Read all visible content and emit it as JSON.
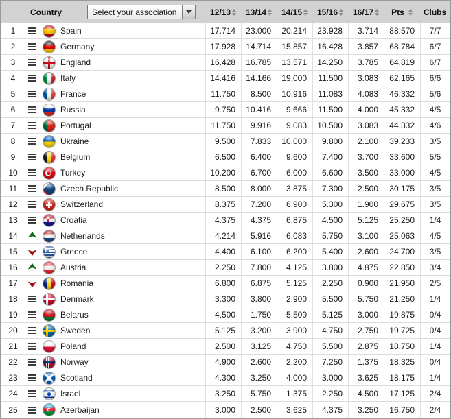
{
  "header": {
    "country_label": "Country",
    "dropdown": {
      "value": "Select your association"
    },
    "season_columns": [
      "12/13",
      "13/14",
      "14/15",
      "15/16",
      "16/17"
    ],
    "pts_label": "Pts",
    "clubs_label": "Clubs"
  },
  "icons": {
    "dropdown": "dropdown-arrow-icon",
    "sort": "sort-arrows-icon",
    "movement_equal": "equal-bars-icon",
    "movement_up": "up-arrow-icon",
    "movement_down": "down-arrow-icon",
    "flag": "flag-icon"
  },
  "colors": {
    "header_bg": "#d2d2d2",
    "outer_border": "#9a9a9a",
    "row_divider": "#dcdce0",
    "movement_up": "#156615",
    "movement_down": "#9e1115",
    "movement_equal": "#3d3d3d"
  },
  "table": {
    "rows": [
      {
        "rank": 1,
        "movement": "equal",
        "flag": "spain",
        "country": "Spain",
        "seasons": [
          "17.714",
          "23.000",
          "20.214",
          "23.928",
          "3.714"
        ],
        "pts": "88.570",
        "clubs": "7/7"
      },
      {
        "rank": 2,
        "movement": "equal",
        "flag": "germany",
        "country": "Germany",
        "seasons": [
          "17.928",
          "14.714",
          "15.857",
          "16.428",
          "3.857"
        ],
        "pts": "68.784",
        "clubs": "6/7"
      },
      {
        "rank": 3,
        "movement": "equal",
        "flag": "england",
        "country": "England",
        "seasons": [
          "16.428",
          "16.785",
          "13.571",
          "14.250",
          "3.785"
        ],
        "pts": "64.819",
        "clubs": "6/7"
      },
      {
        "rank": 4,
        "movement": "equal",
        "flag": "italy",
        "country": "Italy",
        "seasons": [
          "14.416",
          "14.166",
          "19.000",
          "11.500",
          "3.083"
        ],
        "pts": "62.165",
        "clubs": "6/6"
      },
      {
        "rank": 5,
        "movement": "equal",
        "flag": "france",
        "country": "France",
        "seasons": [
          "11.750",
          "8.500",
          "10.916",
          "11.083",
          "4.083"
        ],
        "pts": "46.332",
        "clubs": "5/6"
      },
      {
        "rank": 6,
        "movement": "equal",
        "flag": "russia",
        "country": "Russia",
        "seasons": [
          "9.750",
          "10.416",
          "9.666",
          "11.500",
          "4.000"
        ],
        "pts": "45.332",
        "clubs": "4/5"
      },
      {
        "rank": 7,
        "movement": "equal",
        "flag": "portugal",
        "country": "Portugal",
        "seasons": [
          "11.750",
          "9.916",
          "9.083",
          "10.500",
          "3.083"
        ],
        "pts": "44.332",
        "clubs": "4/6"
      },
      {
        "rank": 8,
        "movement": "equal",
        "flag": "ukraine",
        "country": "Ukraine",
        "seasons": [
          "9.500",
          "7.833",
          "10.000",
          "9.800",
          "2.100"
        ],
        "pts": "39.233",
        "clubs": "3/5"
      },
      {
        "rank": 9,
        "movement": "equal",
        "flag": "belgium",
        "country": "Belgium",
        "seasons": [
          "6.500",
          "6.400",
          "9.600",
          "7.400",
          "3.700"
        ],
        "pts": "33.600",
        "clubs": "5/5"
      },
      {
        "rank": 10,
        "movement": "equal",
        "flag": "turkey",
        "country": "Turkey",
        "seasons": [
          "10.200",
          "6.700",
          "6.000",
          "6.600",
          "3.500"
        ],
        "pts": "33.000",
        "clubs": "4/5"
      },
      {
        "rank": 11,
        "movement": "equal",
        "flag": "czech",
        "country": "Czech Republic",
        "seasons": [
          "8.500",
          "8.000",
          "3.875",
          "7.300",
          "2.500"
        ],
        "pts": "30.175",
        "clubs": "3/5"
      },
      {
        "rank": 12,
        "movement": "equal",
        "flag": "switzerland",
        "country": "Switzerland",
        "seasons": [
          "8.375",
          "7.200",
          "6.900",
          "5.300",
          "1.900"
        ],
        "pts": "29.675",
        "clubs": "3/5"
      },
      {
        "rank": 13,
        "movement": "equal",
        "flag": "croatia",
        "country": "Croatia",
        "seasons": [
          "4.375",
          "4.375",
          "6.875",
          "4.500",
          "5.125"
        ],
        "pts": "25.250",
        "clubs": "1/4"
      },
      {
        "rank": 14,
        "movement": "up",
        "flag": "netherlands",
        "country": "Netherlands",
        "seasons": [
          "4.214",
          "5.916",
          "6.083",
          "5.750",
          "3.100"
        ],
        "pts": "25.063",
        "clubs": "4/5"
      },
      {
        "rank": 15,
        "movement": "down",
        "flag": "greece",
        "country": "Greece",
        "seasons": [
          "4.400",
          "6.100",
          "6.200",
          "5.400",
          "2.600"
        ],
        "pts": "24.700",
        "clubs": "3/5"
      },
      {
        "rank": 16,
        "movement": "up",
        "flag": "austria",
        "country": "Austria",
        "seasons": [
          "2.250",
          "7.800",
          "4.125",
          "3.800",
          "4.875"
        ],
        "pts": "22.850",
        "clubs": "3/4"
      },
      {
        "rank": 17,
        "movement": "down",
        "flag": "romania",
        "country": "Romania",
        "seasons": [
          "6.800",
          "6.875",
          "5.125",
          "2.250",
          "0.900"
        ],
        "pts": "21.950",
        "clubs": "2/5"
      },
      {
        "rank": 18,
        "movement": "equal",
        "flag": "denmark",
        "country": "Denmark",
        "seasons": [
          "3.300",
          "3.800",
          "2.900",
          "5.500",
          "5.750"
        ],
        "pts": "21.250",
        "clubs": "1/4"
      },
      {
        "rank": 19,
        "movement": "equal",
        "flag": "belarus",
        "country": "Belarus",
        "seasons": [
          "4.500",
          "1.750",
          "5.500",
          "5.125",
          "3.000"
        ],
        "pts": "19.875",
        "clubs": "0/4"
      },
      {
        "rank": 20,
        "movement": "equal",
        "flag": "sweden",
        "country": "Sweden",
        "seasons": [
          "5.125",
          "3.200",
          "3.900",
          "4.750",
          "2.750"
        ],
        "pts": "19.725",
        "clubs": "0/4"
      },
      {
        "rank": 21,
        "movement": "equal",
        "flag": "poland",
        "country": "Poland",
        "seasons": [
          "2.500",
          "3.125",
          "4.750",
          "5.500",
          "2.875"
        ],
        "pts": "18.750",
        "clubs": "1/4"
      },
      {
        "rank": 22,
        "movement": "equal",
        "flag": "norway",
        "country": "Norway",
        "seasons": [
          "4.900",
          "2.600",
          "2.200",
          "7.250",
          "1.375"
        ],
        "pts": "18.325",
        "clubs": "0/4"
      },
      {
        "rank": 23,
        "movement": "equal",
        "flag": "scotland",
        "country": "Scotland",
        "seasons": [
          "4.300",
          "3.250",
          "4.000",
          "3.000",
          "3.625"
        ],
        "pts": "18.175",
        "clubs": "1/4"
      },
      {
        "rank": 24,
        "movement": "equal",
        "flag": "israel",
        "country": "Israel",
        "seasons": [
          "3.250",
          "5.750",
          "1.375",
          "2.250",
          "4.500"
        ],
        "pts": "17.125",
        "clubs": "2/4"
      },
      {
        "rank": 25,
        "movement": "equal",
        "flag": "azerbaijan",
        "country": "Azerbaijan",
        "seasons": [
          "3.000",
          "2.500",
          "3.625",
          "4.375",
          "3.250"
        ],
        "pts": "16.750",
        "clubs": "2/4"
      }
    ]
  }
}
